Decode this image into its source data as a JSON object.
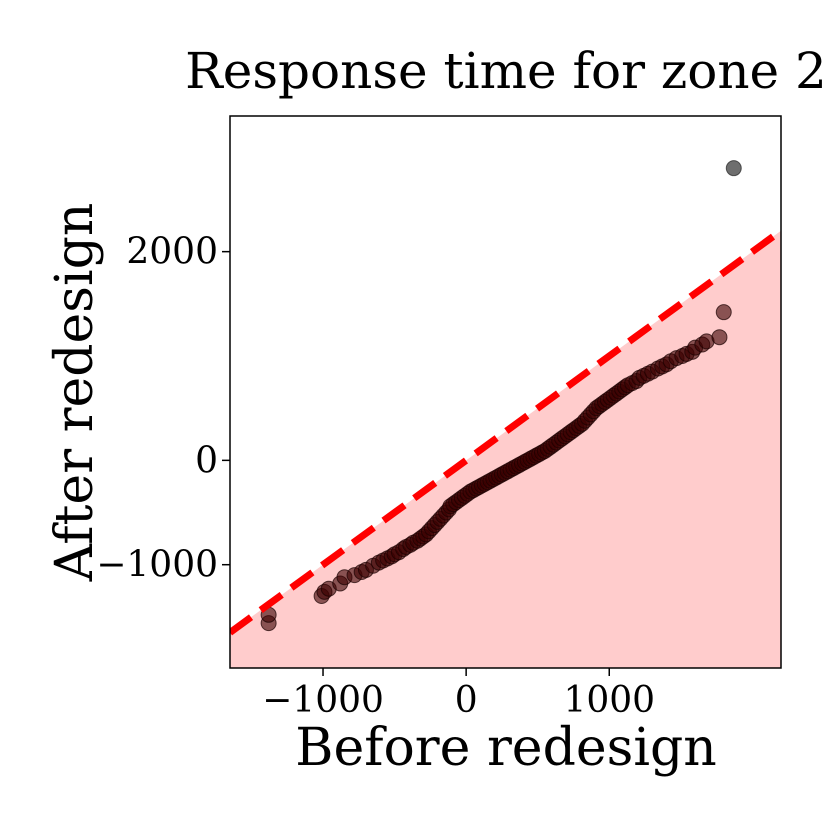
{
  "chart_data": {
    "type": "scatter",
    "title": "Response time for zone 2",
    "xlabel": "Before redesign",
    "ylabel": "After redesign",
    "xlim": [
      -1650,
      2200
    ],
    "ylim": [
      -1990,
      3300
    ],
    "xticks": [
      -1000,
      0,
      1000
    ],
    "xtick_labels": [
      "−1000",
      "0",
      "1000"
    ],
    "yticks": [
      -1000,
      0,
      2000
    ],
    "ytick_labels": [
      "−1000",
      "0",
      "2000"
    ],
    "grid": false,
    "reference_line": {
      "label": "",
      "slope": 1,
      "intercept": 0,
      "style": "dashed",
      "color": "#ff0000"
    },
    "region_below_line_color": "#ffcccc",
    "point_color": "#3a0000",
    "outlier_color": "#555555",
    "points": [
      [
        -1380,
        -1560
      ],
      [
        -1380,
        -1480
      ],
      [
        -1010,
        -1300
      ],
      [
        -990,
        -1260
      ],
      [
        -960,
        -1230
      ],
      [
        -880,
        -1180
      ],
      [
        -850,
        -1120
      ],
      [
        -780,
        -1100
      ],
      [
        -730,
        -1070
      ],
      [
        -700,
        -1050
      ],
      [
        -650,
        -1010
      ],
      [
        -610,
        -980
      ],
      [
        -580,
        -960
      ],
      [
        -550,
        -940
      ],
      [
        -520,
        -920
      ],
      [
        -500,
        -900
      ],
      [
        -470,
        -880
      ],
      [
        -440,
        -850
      ],
      [
        -420,
        -830
      ],
      [
        -390,
        -810
      ],
      [
        -370,
        -790
      ],
      [
        -340,
        -770
      ],
      [
        -320,
        -750
      ],
      [
        -300,
        -730
      ],
      [
        -280,
        -710
      ],
      [
        -260,
        -680
      ],
      [
        -240,
        -650
      ],
      [
        -220,
        -620
      ],
      [
        -200,
        -590
      ],
      [
        -180,
        -560
      ],
      [
        -160,
        -530
      ],
      [
        -140,
        -500
      ],
      [
        -120,
        -470
      ],
      [
        -110,
        -440
      ],
      [
        -90,
        -420
      ],
      [
        -70,
        -400
      ],
      [
        -50,
        -380
      ],
      [
        -30,
        -360
      ],
      [
        -10,
        -340
      ],
      [
        10,
        -320
      ],
      [
        30,
        -300
      ],
      [
        50,
        -285
      ],
      [
        70,
        -270
      ],
      [
        90,
        -255
      ],
      [
        110,
        -240
      ],
      [
        130,
        -225
      ],
      [
        150,
        -210
      ],
      [
        170,
        -195
      ],
      [
        190,
        -180
      ],
      [
        210,
        -165
      ],
      [
        230,
        -150
      ],
      [
        250,
        -135
      ],
      [
        270,
        -120
      ],
      [
        290,
        -105
      ],
      [
        310,
        -90
      ],
      [
        330,
        -75
      ],
      [
        350,
        -60
      ],
      [
        370,
        -45
      ],
      [
        390,
        -30
      ],
      [
        410,
        -15
      ],
      [
        430,
        0
      ],
      [
        450,
        15
      ],
      [
        470,
        30
      ],
      [
        490,
        45
      ],
      [
        510,
        60
      ],
      [
        530,
        75
      ],
      [
        550,
        90
      ],
      [
        570,
        110
      ],
      [
        590,
        130
      ],
      [
        610,
        150
      ],
      [
        630,
        170
      ],
      [
        650,
        190
      ],
      [
        670,
        210
      ],
      [
        690,
        230
      ],
      [
        710,
        250
      ],
      [
        730,
        270
      ],
      [
        750,
        290
      ],
      [
        770,
        310
      ],
      [
        790,
        330
      ],
      [
        810,
        350
      ],
      [
        830,
        380
      ],
      [
        850,
        410
      ],
      [
        870,
        440
      ],
      [
        890,
        470
      ],
      [
        910,
        500
      ],
      [
        930,
        520
      ],
      [
        950,
        540
      ],
      [
        970,
        560
      ],
      [
        990,
        580
      ],
      [
        1010,
        600
      ],
      [
        1030,
        620
      ],
      [
        1050,
        640
      ],
      [
        1070,
        660
      ],
      [
        1090,
        680
      ],
      [
        1110,
        700
      ],
      [
        1130,
        720
      ],
      [
        1160,
        740
      ],
      [
        1190,
        760
      ],
      [
        1210,
        790
      ],
      [
        1240,
        810
      ],
      [
        1270,
        830
      ],
      [
        1300,
        850
      ],
      [
        1340,
        880
      ],
      [
        1370,
        900
      ],
      [
        1400,
        920
      ],
      [
        1430,
        950
      ],
      [
        1470,
        980
      ],
      [
        1510,
        1000
      ],
      [
        1540,
        1020
      ],
      [
        1580,
        1040
      ],
      [
        1600,
        1080
      ],
      [
        1650,
        1110
      ],
      [
        1680,
        1140
      ],
      [
        1770,
        1180
      ],
      [
        1800,
        1420
      ],
      [
        1870,
        2800
      ]
    ]
  }
}
